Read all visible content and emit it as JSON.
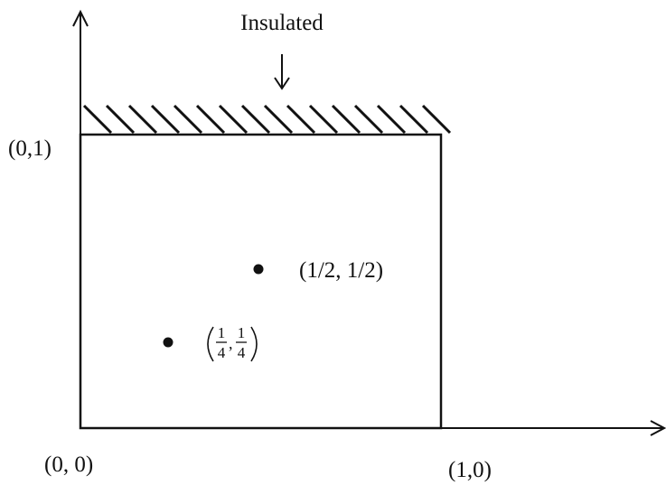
{
  "diagram": {
    "insulated_label": "Insulated",
    "origin_label": "(0, 0)",
    "top_left_label": "(0,1)",
    "bottom_right_label": "(1,0)",
    "point_half_label": "(1/2, 1/2)",
    "point_quarter": {
      "num1": "1",
      "den1": "4",
      "num2": "1",
      "den2": "4",
      "comma": ","
    }
  },
  "colors": {
    "ink": "#111111",
    "background": "#ffffff"
  }
}
